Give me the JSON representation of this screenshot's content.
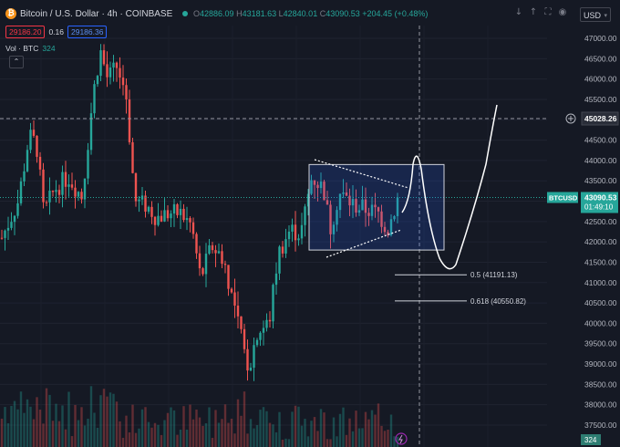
{
  "header": {
    "symbol_title": "Bitcoin / U.S. Dollar · 4h · COINBASE",
    "symbol_logo": "₿",
    "ohlc": {
      "o_label": "O",
      "o": "42886.09",
      "h_label": "H",
      "h": "43181.63",
      "l_label": "L",
      "l": "42840.01",
      "c_label": "C",
      "c": "43090.53",
      "change": "+204.45 (+0.48%)"
    },
    "bid": "29186.20",
    "spread": "0.16",
    "ask": "29186.36",
    "vol_label": "Vol · BTC",
    "vol_value": "324",
    "currency": "USD",
    "icons": [
      "arrow-down-icon",
      "arrow-up-icon",
      "fullscreen-icon",
      "camera-icon"
    ]
  },
  "price_axis": {
    "ticks": [
      "47000.00",
      "46500.00",
      "46000.00",
      "45500.00",
      "45000.00",
      "44500.00",
      "44000.00",
      "43500.00",
      "43000.00",
      "42500.00",
      "42000.00",
      "41500.00",
      "41000.00",
      "40500.00",
      "40000.00",
      "39500.00",
      "39000.00",
      "38500.00",
      "38000.00",
      "37500.00"
    ],
    "crosshair_price": "45028.26",
    "symbol_tag": "BTCUSD",
    "last_price": "43090.53",
    "countdown": "01:49:10",
    "volume_tag": "324"
  },
  "annotations": {
    "fib_05": "0.5 (41191.13)",
    "fib_0618": "0.618 (40550.82)"
  },
  "colors": {
    "up": "#26a69a",
    "down": "#ef5350",
    "bg": "#151924",
    "accent": "#2962ff"
  },
  "chart_data": {
    "type": "candlestick",
    "ylim": [
      37400,
      47400
    ],
    "last_price": 43090.53,
    "crosshair_price": 45028.26,
    "fib_levels": [
      41191.13,
      40550.82
    ],
    "consolidation_box": [
      41800,
      43900
    ]
  }
}
